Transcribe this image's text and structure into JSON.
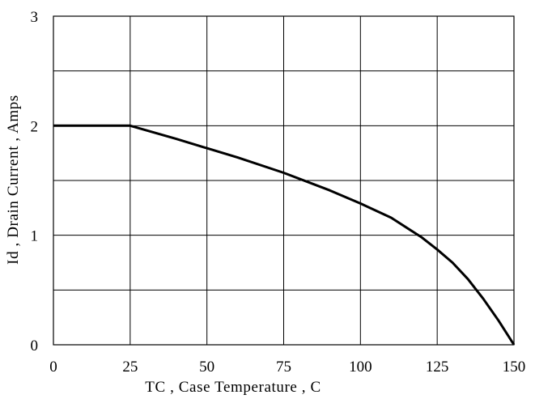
{
  "chart_data": {
    "type": "line",
    "title": "",
    "xlabel": "TC , Case Temperature , C",
    "ylabel": "Id , Drain Current , Amps",
    "xlim": [
      0,
      150
    ],
    "ylim": [
      0,
      3
    ],
    "x_ticks": [
      "0",
      "25",
      "50",
      "75",
      "100",
      "125",
      "150"
    ],
    "y_ticks": [
      "0",
      "1",
      "2",
      "3"
    ],
    "grid": true,
    "grid_y_step": 0.5,
    "series": [
      {
        "x": [
          0,
          25,
          40,
          60,
          75,
          90,
          100,
          110,
          120,
          125,
          130,
          135,
          140,
          145,
          150
        ],
        "y": [
          2.0,
          2.0,
          1.88,
          1.71,
          1.57,
          1.41,
          1.29,
          1.16,
          0.98,
          0.87,
          0.75,
          0.6,
          0.42,
          0.22,
          0.0
        ]
      }
    ],
    "line_color": "#000000"
  }
}
